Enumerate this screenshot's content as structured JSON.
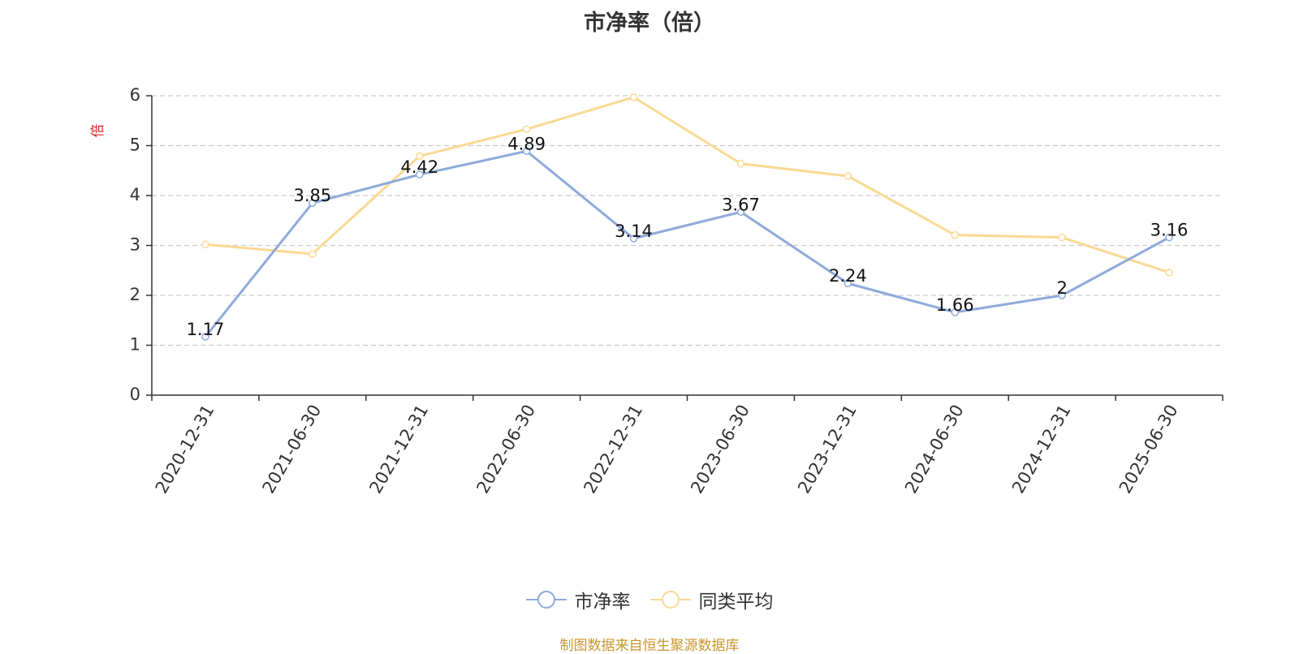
{
  "chart_data": {
    "type": "line",
    "title": "市净率（倍）",
    "ylabel": "倍",
    "categories": [
      "2020-12-31",
      "2021-06-30",
      "2021-12-31",
      "2022-06-30",
      "2022-12-31",
      "2023-06-30",
      "2023-12-31",
      "2024-06-30",
      "2024-12-31",
      "2025-06-30"
    ],
    "series": [
      {
        "name": "市净率",
        "color": "#8eaadb",
        "values": [
          1.17,
          3.85,
          4.42,
          4.89,
          3.14,
          3.67,
          2.24,
          1.66,
          2,
          3.16
        ],
        "labels": [
          "1.17",
          "3.85",
          "4.42",
          "4.89",
          "3.14",
          "3.67",
          "2.24",
          "1.66",
          "2",
          "3.16"
        ],
        "show_labels": true
      },
      {
        "name": "同类平均",
        "color": "#fad993",
        "values": [
          3.02,
          2.83,
          4.79,
          5.33,
          5.97,
          4.64,
          4.39,
          3.21,
          3.16,
          2.46
        ],
        "show_labels": false
      }
    ],
    "yticks": [
      "0",
      "1",
      "2",
      "3",
      "4",
      "5",
      "6"
    ],
    "ylim": [
      0,
      6
    ],
    "grid": true,
    "legend": "bottom-center"
  },
  "footer": {
    "source": "制图数据来自恒生聚源数据库"
  }
}
